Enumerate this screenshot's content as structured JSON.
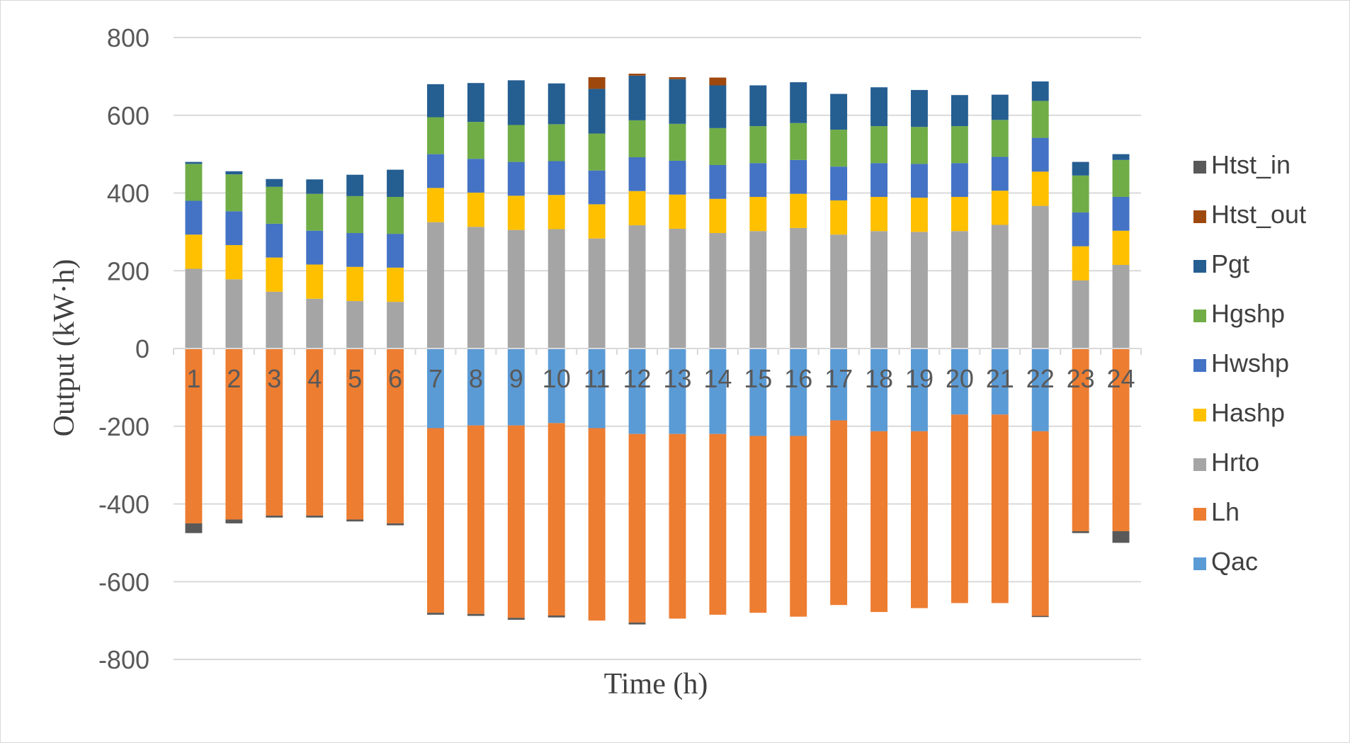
{
  "chart_data": {
    "type": "bar",
    "stacked": true,
    "title": "",
    "xlabel": "Time (h)",
    "ylabel": "Output (kW·h)",
    "ylim": [
      -800,
      800
    ],
    "ytick_values": [
      800,
      600,
      400,
      200,
      0,
      -200,
      -400,
      -600,
      -800
    ],
    "ytick_labels": [
      "800",
      "600",
      "400",
      "200",
      "0",
      "-200",
      "-400",
      "-600",
      "-800"
    ],
    "grid": true,
    "legend_position": "right",
    "categories": [
      "1",
      "2",
      "3",
      "4",
      "5",
      "6",
      "7",
      "8",
      "9",
      "10",
      "11",
      "12",
      "13",
      "14",
      "15",
      "16",
      "17",
      "18",
      "19",
      "20",
      "21",
      "22",
      "23",
      "24"
    ],
    "series": [
      {
        "name": "Htst_in",
        "color": "#595959",
        "values": [
          -25,
          -10,
          -5,
          -5,
          -5,
          -5,
          -5,
          -5,
          -5,
          -5,
          0,
          -5,
          0,
          0,
          0,
          0,
          0,
          0,
          0,
          0,
          0,
          -3,
          -5,
          -30
        ]
      },
      {
        "name": "Htst_out",
        "color": "#9e480e",
        "values": [
          0,
          0,
          0,
          0,
          0,
          0,
          0,
          0,
          0,
          0,
          30,
          5,
          5,
          20,
          0,
          0,
          0,
          0,
          0,
          0,
          0,
          0,
          0,
          0
        ]
      },
      {
        "name": "Pgt",
        "color": "#255e91",
        "values": [
          5,
          8,
          20,
          37,
          55,
          70,
          85,
          100,
          115,
          105,
          115,
          115,
          115,
          110,
          105,
          105,
          92,
          100,
          95,
          80,
          65,
          50,
          35,
          15
        ]
      },
      {
        "name": "Hgshp",
        "color": "#70ad47",
        "values": [
          95,
          95,
          95,
          95,
          95,
          95,
          95,
          95,
          95,
          95,
          95,
          95,
          95,
          95,
          95,
          95,
          95,
          95,
          95,
          95,
          95,
          95,
          95,
          95
        ]
      },
      {
        "name": "Hwshp",
        "color": "#4472c4",
        "values": [
          87,
          87,
          87,
          87,
          87,
          87,
          87,
          87,
          87,
          87,
          87,
          87,
          87,
          87,
          87,
          87,
          87,
          87,
          87,
          87,
          87,
          87,
          87,
          87
        ]
      },
      {
        "name": "Hashp",
        "color": "#ffc000",
        "values": [
          88,
          88,
          88,
          88,
          88,
          88,
          88,
          88,
          88,
          88,
          88,
          88,
          88,
          88,
          88,
          88,
          88,
          88,
          88,
          88,
          88,
          88,
          88,
          88
        ]
      },
      {
        "name": "Hrto",
        "color": "#a5a5a5",
        "values": [
          205,
          178,
          146,
          128,
          122,
          120,
          325,
          313,
          305,
          307,
          283,
          317,
          308,
          297,
          302,
          310,
          293,
          302,
          300,
          302,
          318,
          367,
          175,
          215
        ]
      },
      {
        "name": "Lh",
        "color": "#ed7d31",
        "values": [
          -450,
          -440,
          -430,
          -430,
          -440,
          -450,
          -475,
          -485,
          -495,
          -495,
          -495,
          -485,
          -475,
          -465,
          -455,
          -465,
          -475,
          -465,
          -455,
          -485,
          -485,
          -475,
          -470,
          -470
        ]
      },
      {
        "name": "Qac",
        "color": "#5b9bd5",
        "values": [
          0,
          0,
          0,
          0,
          0,
          0,
          -205,
          -198,
          -198,
          -192,
          -205,
          -220,
          -220,
          -220,
          -225,
          -225,
          -185,
          -213,
          -213,
          -170,
          -170,
          -213,
          0,
          0
        ]
      }
    ],
    "legend_order": [
      "Htst_in",
      "Htst_out",
      "Pgt",
      "Hgshp",
      "Hwshp",
      "Hashp",
      "Hrto",
      "Lh",
      "Qac"
    ]
  }
}
